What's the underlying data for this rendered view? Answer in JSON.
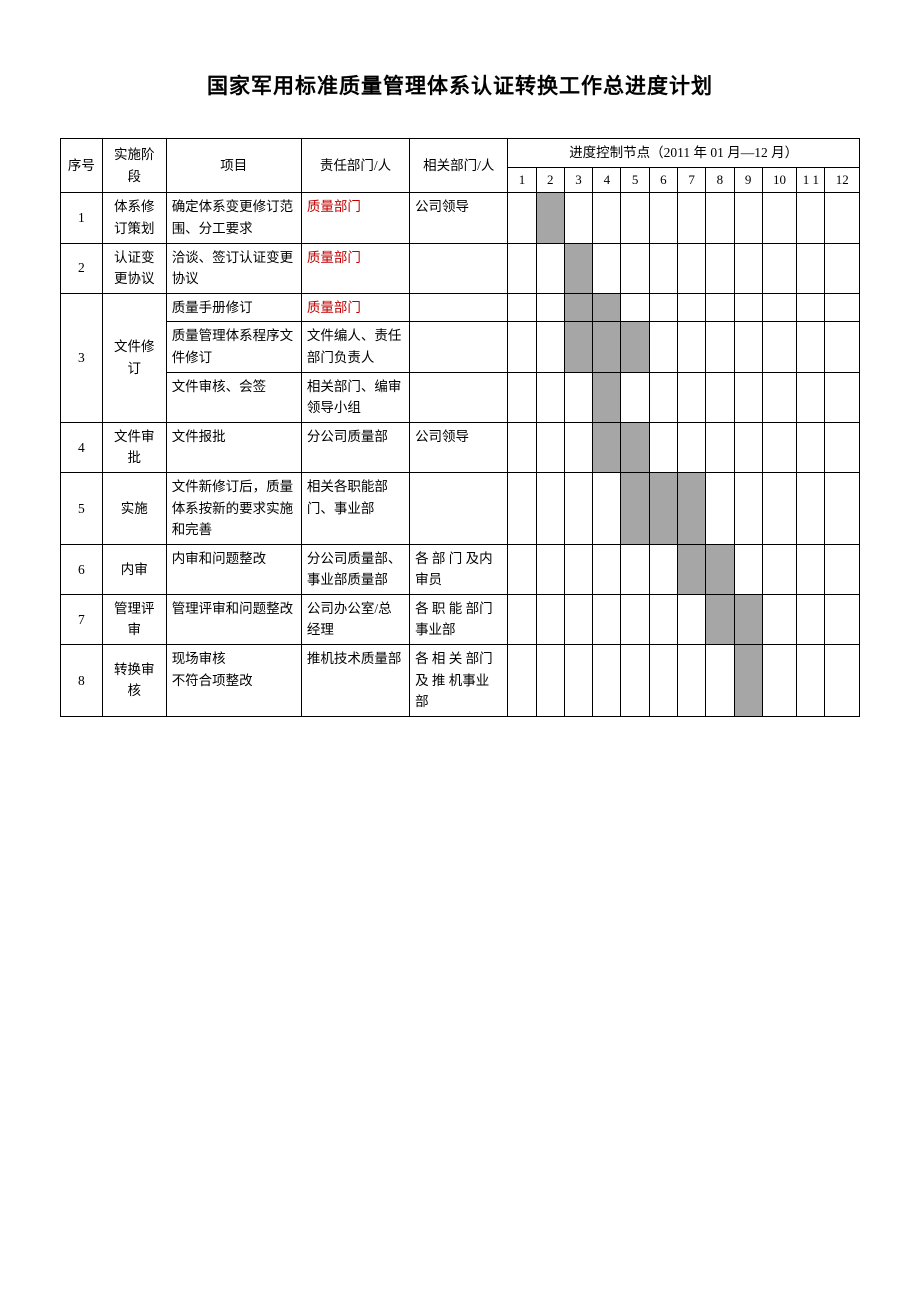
{
  "title": "国家军用标准质量管理体系认证转换工作总进度计划",
  "headers": {
    "seq": "序号",
    "stage": "实施阶段",
    "project": "项目",
    "dept": "责任部门/人",
    "related": "相关部门/人",
    "timeline": "进度控制节点（2011 年 01 月—12 月）",
    "months": [
      "1",
      "2",
      "3",
      "4",
      "5",
      "6",
      "7",
      "8",
      "9",
      "10",
      "1 1",
      "12"
    ]
  },
  "shaded_color": "#a6a6a6",
  "red_color": "#c00000",
  "rows": [
    {
      "seq": "1",
      "stage": "体系修订策划",
      "sub": [
        {
          "project": "确定体系变更修订范围、分工要求",
          "dept": "质量部门",
          "dept_red": true,
          "related": "公司领导",
          "months": [
            2
          ]
        }
      ]
    },
    {
      "seq": "2",
      "stage": "认证变更协议",
      "sub": [
        {
          "project": "洽谈、签订认证变更协议",
          "dept": "质量部门",
          "dept_red": true,
          "related": "",
          "months": [
            3
          ]
        }
      ]
    },
    {
      "seq": "3",
      "stage": "文件修订",
      "sub": [
        {
          "project": "质量手册修订",
          "dept": "质量部门",
          "dept_red": true,
          "related": "",
          "months": [
            3,
            4
          ]
        },
        {
          "project": "质量管理体系程序文件修订",
          "dept": "文件编人、责任部门负责人",
          "dept_red": false,
          "related": "",
          "months": [
            3,
            4,
            5
          ]
        },
        {
          "project": "文件审核、会签",
          "dept": "相关部门、编审领导小组",
          "dept_red": false,
          "related": "",
          "months": [
            4
          ]
        }
      ]
    },
    {
      "seq": "4",
      "stage": "文件审批",
      "sub": [
        {
          "project": "文件报批",
          "dept": "分公司质量部",
          "dept_red": false,
          "related": "公司领导",
          "months": [
            4,
            5
          ]
        }
      ]
    },
    {
      "seq": "5",
      "stage": "实施",
      "sub": [
        {
          "project": "文件新修订后，质量体系按新的要求实施和完善",
          "dept": "相关各职能部门、事业部",
          "dept_red": false,
          "related": "",
          "months": [
            5,
            6,
            7
          ]
        }
      ]
    },
    {
      "seq": "6",
      "stage": "内审",
      "sub": [
        {
          "project": "内审和问题整改",
          "dept": "分公司质量部、事业部质量部",
          "dept_red": false,
          "related": "各 部 门 及内审员",
          "months": [
            7,
            8
          ]
        }
      ]
    },
    {
      "seq": "7",
      "stage": "管理评审",
      "sub": [
        {
          "project": "管理评审和问题整改",
          "dept": "公司办公室/总经理",
          "dept_red": false,
          "related": "各 职 能 部门事业部",
          "months": [
            8,
            9
          ]
        }
      ]
    },
    {
      "seq": "8",
      "stage": "转换审核",
      "sub": [
        {
          "project": "现场审核",
          "project2": "不符合项整改",
          "dept": "推机技术质量部",
          "dept_red": false,
          "related": "各 相 关 部门 及 推 机事业部",
          "months": [
            9
          ]
        }
      ]
    }
  ]
}
